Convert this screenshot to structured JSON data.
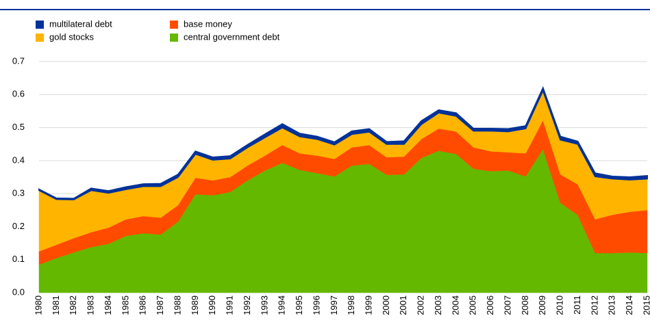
{
  "chart_data": {
    "type": "stacked_area",
    "categories": [
      "1980",
      "1981",
      "1982",
      "1983",
      "1984",
      "1985",
      "1986",
      "1987",
      "1988",
      "1989",
      "1990",
      "1991",
      "1992",
      "1993",
      "1994",
      "1995",
      "1996",
      "1997",
      "1998",
      "1999",
      "2000",
      "2001",
      "2002",
      "2003",
      "2004",
      "2005",
      "2006",
      "2007",
      "2008",
      "2009",
      "2010",
      "2011",
      "2012",
      "2013",
      "2014",
      "2015"
    ],
    "series": [
      {
        "name": "central government debt",
        "color": "#65b800",
        "values": [
          0.085,
          0.105,
          0.122,
          0.138,
          0.148,
          0.172,
          0.18,
          0.176,
          0.215,
          0.298,
          0.295,
          0.305,
          0.34,
          0.37,
          0.393,
          0.372,
          0.362,
          0.352,
          0.385,
          0.39,
          0.357,
          0.358,
          0.408,
          0.43,
          0.42,
          0.375,
          0.368,
          0.37,
          0.352,
          0.435,
          0.272,
          0.235,
          0.12,
          0.12,
          0.122,
          0.12
        ]
      },
      {
        "name": "base money",
        "color": "#ff4b00",
        "values": [
          0.04,
          0.04,
          0.043,
          0.045,
          0.049,
          0.05,
          0.052,
          0.051,
          0.05,
          0.05,
          0.045,
          0.045,
          0.045,
          0.045,
          0.054,
          0.05,
          0.053,
          0.053,
          0.055,
          0.057,
          0.053,
          0.054,
          0.057,
          0.067,
          0.068,
          0.065,
          0.06,
          0.055,
          0.07,
          0.087,
          0.086,
          0.093,
          0.102,
          0.116,
          0.123,
          0.13
        ]
      },
      {
        "name": "gold stocks",
        "color": "#ffb400",
        "values": [
          0.185,
          0.138,
          0.117,
          0.127,
          0.105,
          0.091,
          0.09,
          0.095,
          0.085,
          0.072,
          0.062,
          0.056,
          0.055,
          0.055,
          0.053,
          0.051,
          0.05,
          0.043,
          0.04,
          0.04,
          0.04,
          0.038,
          0.045,
          0.048,
          0.047,
          0.05,
          0.062,
          0.063,
          0.075,
          0.09,
          0.105,
          0.122,
          0.13,
          0.109,
          0.097,
          0.095
        ]
      },
      {
        "name": "multilateral debt",
        "color": "#003299",
        "values": [
          0.003,
          0.003,
          0.003,
          0.006,
          0.006,
          0.007,
          0.007,
          0.008,
          0.008,
          0.008,
          0.008,
          0.008,
          0.008,
          0.01,
          0.011,
          0.009,
          0.008,
          0.008,
          0.009,
          0.009,
          0.007,
          0.009,
          0.01,
          0.008,
          0.009,
          0.007,
          0.007,
          0.008,
          0.008,
          0.008,
          0.01,
          0.008,
          0.01,
          0.007,
          0.008,
          0.009
        ]
      }
    ],
    "ylim": [
      0,
      0.7
    ],
    "yticks": [
      {
        "value": 0,
        "label": "0.0"
      },
      0.1,
      0.2,
      0.3,
      0.4,
      0.5,
      0.6,
      0.7
    ],
    "grid": true
  }
}
